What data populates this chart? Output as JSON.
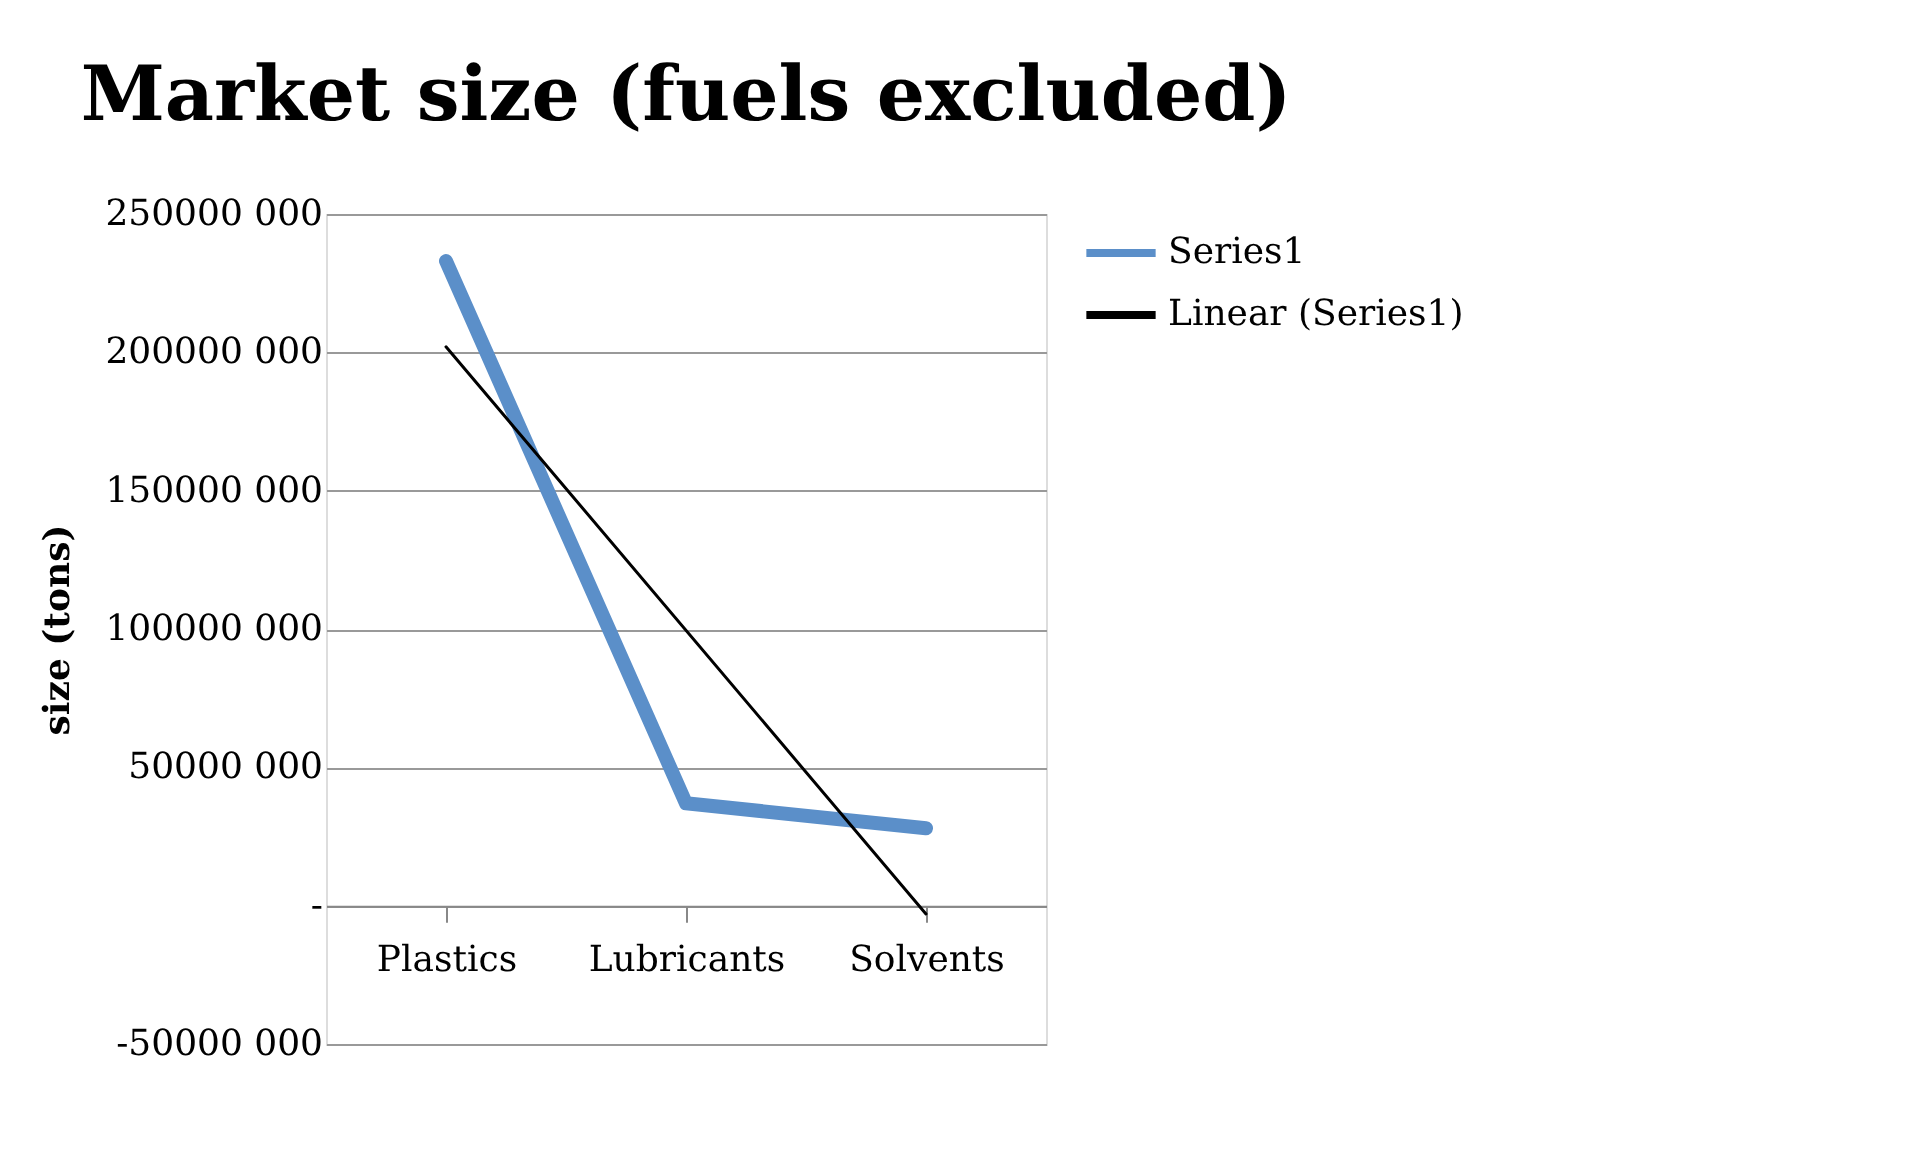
{
  "chart_data": {
    "type": "line",
    "title": "Market size (fuels excluded)",
    "ylabel": "size (tons)",
    "categories": [
      "Plastics",
      "Lubricants",
      "Solvents"
    ],
    "series": [
      {
        "name": "Series1",
        "color": "#5b8fc9",
        "values": [
          233000000,
          37000000,
          28000000
        ]
      },
      {
        "name": "Linear (Series1)",
        "color": "#000000",
        "values": [
          202000000,
          null,
          -3000000
        ]
      }
    ],
    "ylim": [
      -50000000,
      250000000
    ],
    "yticks": [
      {
        "value": -50000000,
        "label": "-50000 000"
      },
      {
        "value": 0,
        "label": "-"
      },
      {
        "value": 50000000,
        "label": "50000 000"
      },
      {
        "value": 100000000,
        "label": "100000 000"
      },
      {
        "value": 150000000,
        "label": "150000 000"
      },
      {
        "value": 200000000,
        "label": "200000 000"
      },
      {
        "value": 250000000,
        "label": "250000 000"
      }
    ],
    "grid": "y",
    "legend": "right",
    "marker": "none"
  }
}
